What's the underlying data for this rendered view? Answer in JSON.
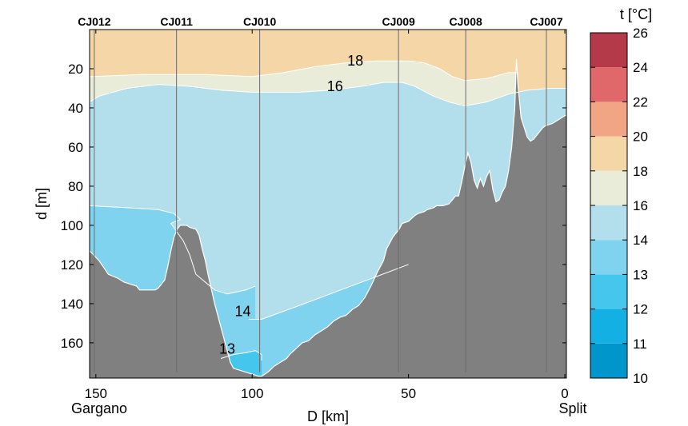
{
  "chart_data": {
    "type": "section",
    "x_axis": {
      "label": "D [km]",
      "reversed": true,
      "range": [
        152,
        -0.5
      ],
      "ticks": [
        150,
        100,
        50,
        0
      ],
      "end_labels": {
        "left": "Gargano",
        "right": "Split"
      }
    },
    "y_axis": {
      "label": "d [m]",
      "reversed": true,
      "range": [
        0,
        178
      ],
      "ticks": [
        20,
        40,
        60,
        80,
        100,
        120,
        140,
        160
      ]
    },
    "stations": [
      {
        "name": "CJ012",
        "x": 150.5
      },
      {
        "name": "CJ011",
        "x": 124.2
      },
      {
        "name": "CJ010",
        "x": 97.6
      },
      {
        "name": "CJ009",
        "x": 53.2
      },
      {
        "name": "CJ008",
        "x": 31.7
      },
      {
        "name": "CJ007",
        "x": 5.9
      }
    ],
    "isotherm_labels": [
      {
        "text": "18",
        "x": 67,
        "y": 16
      },
      {
        "text": "16",
        "x": 73.5,
        "y": 29
      },
      {
        "text": "14",
        "x": 103,
        "y": 144
      },
      {
        "text": "13",
        "x": 108,
        "y": 163
      }
    ],
    "colorbar": {
      "title": "t [°C]",
      "ticks": [
        10,
        11,
        12,
        13,
        14,
        16,
        18,
        20,
        22,
        24,
        26
      ],
      "colors": [
        "#0096cc",
        "#12b0e3",
        "#45c6ec",
        "#80d3ee",
        "#b3dfec",
        "#e9ecd8",
        "#f5d6a6",
        "#f2a585",
        "#e0676a",
        "#b43a4a"
      ]
    },
    "isotherms": {
      "t18": [
        [
          152,
          24
        ],
        [
          135,
          23
        ],
        [
          115,
          23
        ],
        [
          100,
          24
        ],
        [
          90,
          22
        ],
        [
          80,
          19
        ],
        [
          70,
          17
        ],
        [
          60,
          16
        ],
        [
          50,
          16
        ],
        [
          45,
          17
        ],
        [
          40,
          20
        ],
        [
          36,
          24
        ],
        [
          32,
          26
        ],
        [
          25,
          25
        ],
        [
          18,
          22
        ],
        [
          15,
          22
        ]
      ],
      "t16": [
        [
          152,
          37
        ],
        [
          149,
          34
        ],
        [
          140,
          30
        ],
        [
          130,
          28
        ],
        [
          120,
          29
        ],
        [
          110,
          31
        ],
        [
          100,
          32
        ],
        [
          85,
          32
        ],
        [
          75,
          31
        ],
        [
          65,
          29
        ],
        [
          58,
          27
        ],
        [
          52,
          27
        ],
        [
          48,
          29
        ],
        [
          42,
          34
        ],
        [
          37,
          37
        ],
        [
          32,
          39
        ],
        [
          25,
          37
        ],
        [
          18,
          33
        ],
        [
          12,
          31
        ],
        [
          5,
          30
        ],
        [
          -0.5,
          30
        ]
      ],
      "t14_left": [
        [
          152,
          90
        ],
        [
          140,
          91
        ],
        [
          130,
          92
        ],
        [
          125,
          94
        ],
        [
          123,
          97
        ],
        [
          126,
          99
        ],
        [
          122,
          108
        ],
        [
          120,
          115
        ],
        [
          118,
          125
        ],
        [
          112,
          133
        ],
        [
          108,
          135
        ],
        [
          105,
          134
        ],
        [
          102,
          133
        ],
        [
          99,
          131
        ]
      ],
      "t14_main": [
        [
          101,
          148
        ],
        [
          97,
          148
        ],
        [
          85,
          141
        ],
        [
          70,
          132
        ],
        [
          60,
          126
        ],
        [
          50,
          120
        ]
      ],
      "t13": [
        [
          110,
          168
        ],
        [
          106,
          166
        ],
        [
          102,
          165
        ],
        [
          99,
          164
        ],
        [
          97,
          166
        ],
        [
          97,
          169
        ]
      ]
    },
    "bathymetry": [
      [
        152,
        113
      ],
      [
        149,
        118
      ],
      [
        146,
        125
      ],
      [
        143,
        127
      ],
      [
        141,
        129
      ],
      [
        139,
        130
      ],
      [
        137,
        131
      ],
      [
        136,
        133
      ],
      [
        134,
        133
      ],
      [
        133,
        133
      ],
      [
        131,
        133
      ],
      [
        130,
        132
      ],
      [
        128,
        128
      ],
      [
        127,
        121
      ],
      [
        126,
        113
      ],
      [
        125,
        106
      ],
      [
        124,
        102
      ],
      [
        123,
        100
      ],
      [
        121,
        100
      ],
      [
        120,
        101
      ],
      [
        118,
        102
      ],
      [
        117,
        105
      ],
      [
        116,
        112
      ],
      [
        115,
        118
      ],
      [
        114,
        126
      ],
      [
        113,
        133
      ],
      [
        112,
        140
      ],
      [
        111,
        146
      ],
      [
        110,
        152
      ],
      [
        109,
        158
      ],
      [
        108,
        164
      ],
      [
        107,
        170
      ],
      [
        106,
        173
      ],
      [
        104,
        174
      ],
      [
        102,
        175
      ],
      [
        100,
        176
      ],
      [
        98,
        177
      ],
      [
        97,
        177
      ],
      [
        95,
        175
      ],
      [
        93,
        172
      ],
      [
        91,
        170
      ],
      [
        89,
        168
      ],
      [
        88,
        166
      ],
      [
        86,
        163
      ],
      [
        84,
        160
      ],
      [
        82,
        159
      ],
      [
        80,
        156
      ],
      [
        78,
        154
      ],
      [
        76,
        152
      ],
      [
        74,
        149
      ],
      [
        72,
        147
      ],
      [
        70,
        146
      ],
      [
        68,
        143
      ],
      [
        66,
        141
      ],
      [
        64,
        137
      ],
      [
        62,
        131
      ],
      [
        60,
        124
      ],
      [
        58,
        118
      ],
      [
        57,
        112
      ],
      [
        55,
        106
      ],
      [
        53,
        102
      ],
      [
        52,
        99
      ],
      [
        50,
        98
      ],
      [
        48,
        95
      ],
      [
        47,
        94
      ],
      [
        45,
        93
      ],
      [
        44,
        92
      ],
      [
        42,
        91
      ],
      [
        41,
        90
      ],
      [
        39,
        90
      ],
      [
        37,
        89
      ],
      [
        35,
        85
      ],
      [
        34,
        85
      ],
      [
        33,
        78
      ],
      [
        32,
        70
      ],
      [
        31,
        63
      ],
      [
        30,
        68
      ],
      [
        29,
        77
      ],
      [
        28,
        81
      ],
      [
        27,
        76
      ],
      [
        26,
        80
      ],
      [
        25,
        75
      ],
      [
        24,
        72
      ],
      [
        23,
        82
      ],
      [
        22,
        88
      ],
      [
        21,
        87
      ],
      [
        20,
        83
      ],
      [
        19,
        80
      ],
      [
        18,
        72
      ],
      [
        17,
        60
      ],
      [
        16,
        40
      ],
      [
        15.5,
        15
      ],
      [
        15,
        28
      ],
      [
        14,
        45
      ],
      [
        13,
        50
      ],
      [
        12,
        55
      ],
      [
        11,
        57
      ],
      [
        10,
        56
      ],
      [
        9,
        54
      ],
      [
        8,
        52
      ],
      [
        7,
        50
      ],
      [
        6,
        49
      ],
      [
        4,
        48
      ],
      [
        3,
        47
      ],
      [
        2,
        46
      ],
      [
        1,
        45
      ],
      [
        0,
        44
      ],
      [
        -0.5,
        44
      ]
    ]
  }
}
